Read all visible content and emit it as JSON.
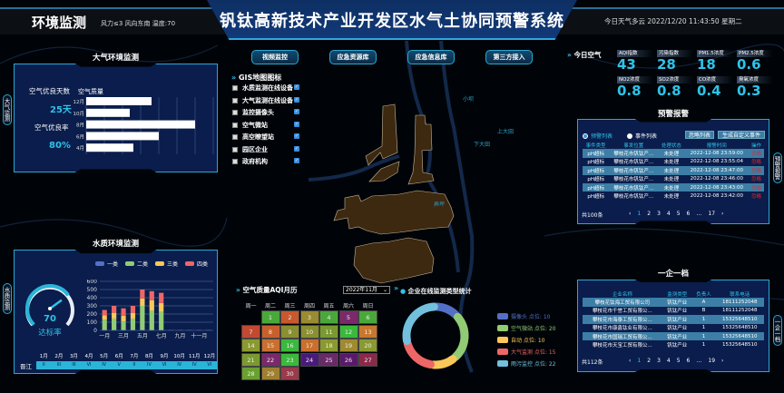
{
  "header": {
    "left_title": "环境监测",
    "weather": "风力≤3   风向东南   温度:70",
    "title": "钒钛高新技术产业开发区水气土协同预警系统",
    "datetime": "今日天气多云   2022/12/20 11:43:50 星期二"
  },
  "nav_buttons": [
    "视频监控",
    "应急资源库",
    "应急信息库",
    "第三方接入"
  ],
  "gis": {
    "title": "GIS地图图标",
    "items": [
      {
        "label": "水质监测在线设备",
        "checked": true
      },
      {
        "label": "大气监测在线设备",
        "checked": true
      },
      {
        "label": "监控摄像头",
        "checked": true
      },
      {
        "label": "空气微站",
        "checked": true
      },
      {
        "label": "高空瞭望站",
        "checked": true
      },
      {
        "label": "园区企业",
        "checked": true
      },
      {
        "label": "政府机构",
        "checked": true
      }
    ]
  },
  "map_labels": [
    "东区",
    "下大田",
    "上大田",
    "小坝",
    "弄坪"
  ],
  "air_panel": {
    "title": "大气环境监测",
    "side_tab": "大气监测",
    "good_days_label": "空气优良天数",
    "good_days_value": "25天",
    "good_rate_label": "空气优良率",
    "good_rate_value": "80%",
    "chart_data": {
      "type": "bar",
      "orientation": "horizontal",
      "title": "空气质量",
      "categories": [
        "12月",
        "10月",
        "8月",
        "6月",
        "4月",
        "2月"
      ],
      "values": [
        180,
        120,
        300,
        200,
        130,
        100
      ],
      "xlim": [
        0,
        350
      ],
      "ticks": [
        "0",
        "50",
        "100",
        "150",
        "200",
        "250",
        "300",
        "350"
      ],
      "bar_color": "#ffffff"
    }
  },
  "water_panel": {
    "title": "水质环境监测",
    "side_tab": "水质监测",
    "gauge": {
      "value": "70",
      "label": "达标率",
      "fraction": 0.7
    },
    "chart_data": {
      "type": "bar",
      "stacked": true,
      "categories": [
        "一月",
        "二月",
        "三月",
        "四月",
        "五月",
        "六月",
        "七月",
        "八月",
        "九月",
        "十月",
        "十一月",
        "十二月"
      ],
      "x_tick_labels": [
        "一月",
        "",
        "三月",
        "",
        "五月",
        "",
        "七月",
        "",
        "九月",
        "",
        "十一月",
        ""
      ],
      "ylim": [
        0,
        600
      ],
      "y_ticks": [
        "0",
        "100",
        "200",
        "300",
        "400",
        "500",
        "600"
      ],
      "series": [
        {
          "name": "一类",
          "color": "#5470c6",
          "values": [
            5,
            5,
            5,
            5,
            5,
            5,
            5,
            5,
            5,
            5,
            5,
            5
          ]
        },
        {
          "name": "二类",
          "color": "#91cc75",
          "values": [
            125,
            140,
            105,
            140,
            295,
            235,
            220,
            0,
            0,
            0,
            0,
            0
          ]
        },
        {
          "name": "三类",
          "color": "#fac858",
          "values": [
            55,
            70,
            70,
            70,
            90,
            130,
            110,
            0,
            0,
            0,
            0,
            0
          ]
        },
        {
          "name": "四类",
          "color": "#ee6666",
          "values": [
            65,
            85,
            90,
            85,
            110,
            110,
            125,
            0,
            0,
            0,
            0,
            0
          ]
        }
      ]
    },
    "grade_row": {
      "river": "晋江",
      "months": [
        "1月",
        "2月",
        "3月",
        "4月",
        "5月",
        "6月",
        "7月",
        "8月",
        "9月",
        "10月",
        "11月",
        "12月"
      ],
      "grades": [
        "II",
        "III",
        "III",
        "VI",
        "IV",
        "V",
        "II",
        "IV",
        "VI",
        "IV",
        "IV",
        "VI"
      ]
    }
  },
  "calendar": {
    "title": "空气质量AQI月历",
    "month_select": "2022年11月",
    "weekdays": [
      "周一",
      "周二",
      "周三",
      "周四",
      "周五",
      "周六",
      "周日"
    ],
    "start_weekday": 1,
    "days": [
      {
        "d": "1",
        "c": "#4aa83a"
      },
      {
        "d": "2",
        "c": "#c8582e"
      },
      {
        "d": "3",
        "c": "#9a8a30"
      },
      {
        "d": "4",
        "c": "#4aa83a"
      },
      {
        "d": "5",
        "c": "#7a2a6a"
      },
      {
        "d": "6",
        "c": "#4aa83a"
      },
      {
        "d": "7",
        "c": "#c24a32"
      },
      {
        "d": "8",
        "c": "#c8602c"
      },
      {
        "d": "9",
        "c": "#8a9030"
      },
      {
        "d": "10",
        "c": "#8a9030"
      },
      {
        "d": "11",
        "c": "#7a9a30"
      },
      {
        "d": "12",
        "c": "#3cb83c"
      },
      {
        "d": "13",
        "c": "#c8782c"
      },
      {
        "d": "14",
        "c": "#8a9a30"
      },
      {
        "d": "15",
        "c": "#c87030"
      },
      {
        "d": "16",
        "c": "#3cb83c"
      },
      {
        "d": "17",
        "c": "#c8702c"
      },
      {
        "d": "18",
        "c": "#8a9a30"
      },
      {
        "d": "19",
        "c": "#a08a30"
      },
      {
        "d": "20",
        "c": "#8a9a30"
      },
      {
        "d": "21",
        "c": "#7a9a30"
      },
      {
        "d": "22",
        "c": "#7a2a6a"
      },
      {
        "d": "23",
        "c": "#3cb83c"
      },
      {
        "d": "24",
        "c": "#4a1a7a"
      },
      {
        "d": "25",
        "c": "#6a2a6a"
      },
      {
        "d": "26",
        "c": "#5a1a6a"
      },
      {
        "d": "27",
        "c": "#8a2a4a"
      },
      {
        "d": "28",
        "c": "#6aa030"
      },
      {
        "d": "29",
        "c": "#a08030"
      },
      {
        "d": "30",
        "c": "#9a3a4a"
      }
    ]
  },
  "donut": {
    "title": "企业在线监测类型统计",
    "chart_data": {
      "type": "pie",
      "donut": true,
      "slices": [
        {
          "name": "摄像头",
          "label": "摄像头 点位: 10",
          "value": 10,
          "color": "#5470c6"
        },
        {
          "name": "空气微站",
          "label": "空气微站 点位: 20",
          "value": 20,
          "color": "#91cc75"
        },
        {
          "name": "自动",
          "label": "自动 点位: 10",
          "value": 10,
          "color": "#fac858"
        },
        {
          "name": "大气监测",
          "label": "大气监测 点位: 15",
          "value": 15,
          "color": "#ee6666"
        },
        {
          "name": "雨污监控",
          "label": "雨污监控 点位: 22",
          "value": 22,
          "color": "#73c0de"
        }
      ]
    }
  },
  "air_today": {
    "title": "今日空气",
    "tiles": [
      {
        "label": "AQI指数",
        "value": "43"
      },
      {
        "label": "污染指数",
        "value": "28"
      },
      {
        "label": "PM1.5浓度",
        "value": "18"
      },
      {
        "label": "PM2.5浓度",
        "value": "0.6"
      },
      {
        "label": "NO2浓度",
        "value": "0.8"
      },
      {
        "label": "SO2浓度",
        "value": "0.8"
      },
      {
        "label": "CO浓度",
        "value": "0.4"
      },
      {
        "label": "臭氧浓度",
        "value": "0.3"
      }
    ]
  },
  "warning": {
    "title": "预警报警",
    "side_tab": "预警报警",
    "radio": [
      {
        "label": "预警列表",
        "selected": true
      },
      {
        "label": "事件列表",
        "selected": false
      }
    ],
    "buttons": [
      "忽略列表",
      "生成自定义事件"
    ],
    "columns": [
      "事件类型",
      "事发位置",
      "处理状态",
      "报警时间",
      "操作"
    ],
    "rows": [
      [
        "pH超标",
        "攀枝花市钒钛产...",
        "未处理",
        "2022-12-08 23:59:00",
        "忽略"
      ],
      [
        "pH超标",
        "攀枝花市钒钛产...",
        "未处理",
        "2022-12-08 23:55:04",
        "忽略"
      ],
      [
        "pH超标",
        "攀枝花市钒钛产...",
        "未处理",
        "2022-12-08 23:47:00",
        "忽略"
      ],
      [
        "pH超标",
        "攀枝花市钒钛产...",
        "未处理",
        "2022-12-08 23:46:00",
        "忽略"
      ],
      [
        "pH超标",
        "攀枝花市钒钛产...",
        "未处理",
        "2022-12-08 23:43:00",
        "忽略"
      ],
      [
        "pH超标",
        "攀枝花市钒钛产...",
        "未处理",
        "2022-12-08 23:42:00",
        "忽略"
      ]
    ],
    "total": "共100条",
    "pages": [
      "‹",
      "1",
      "2",
      "3",
      "4",
      "5",
      "6",
      "…",
      "17",
      "›"
    ]
  },
  "enterprise": {
    "title": "一企一档",
    "side_tab": "一企一档",
    "columns": [
      "企业名称",
      "监测类型",
      "负责人",
      "联系电话"
    ],
    "rows": [
      [
        "攀枝花钛海工贸有限公司",
        "钒钛产业",
        "A",
        "18111252048"
      ],
      [
        "攀枝花市千誉工贸有限公...",
        "钒钛产业",
        "B",
        "18111252048"
      ],
      [
        "攀枝花市海泰工贸有限公...",
        "钒钛产业",
        "1",
        "15325648510"
      ],
      [
        "攀枝花市康鑫钛业有限公...",
        "钒钛产业",
        "1",
        "15325648510"
      ],
      [
        "攀枝花市国瑞工贸有限公...",
        "钒钛产业",
        "1",
        "15325648510"
      ],
      [
        "攀枝花市天宝工贸有限公...",
        "钒钛产业",
        "1",
        "15325648510"
      ]
    ],
    "total": "共112条",
    "pages": [
      "‹",
      "1",
      "2",
      "3",
      "4",
      "5",
      "6",
      "…",
      "19",
      "›"
    ]
  }
}
